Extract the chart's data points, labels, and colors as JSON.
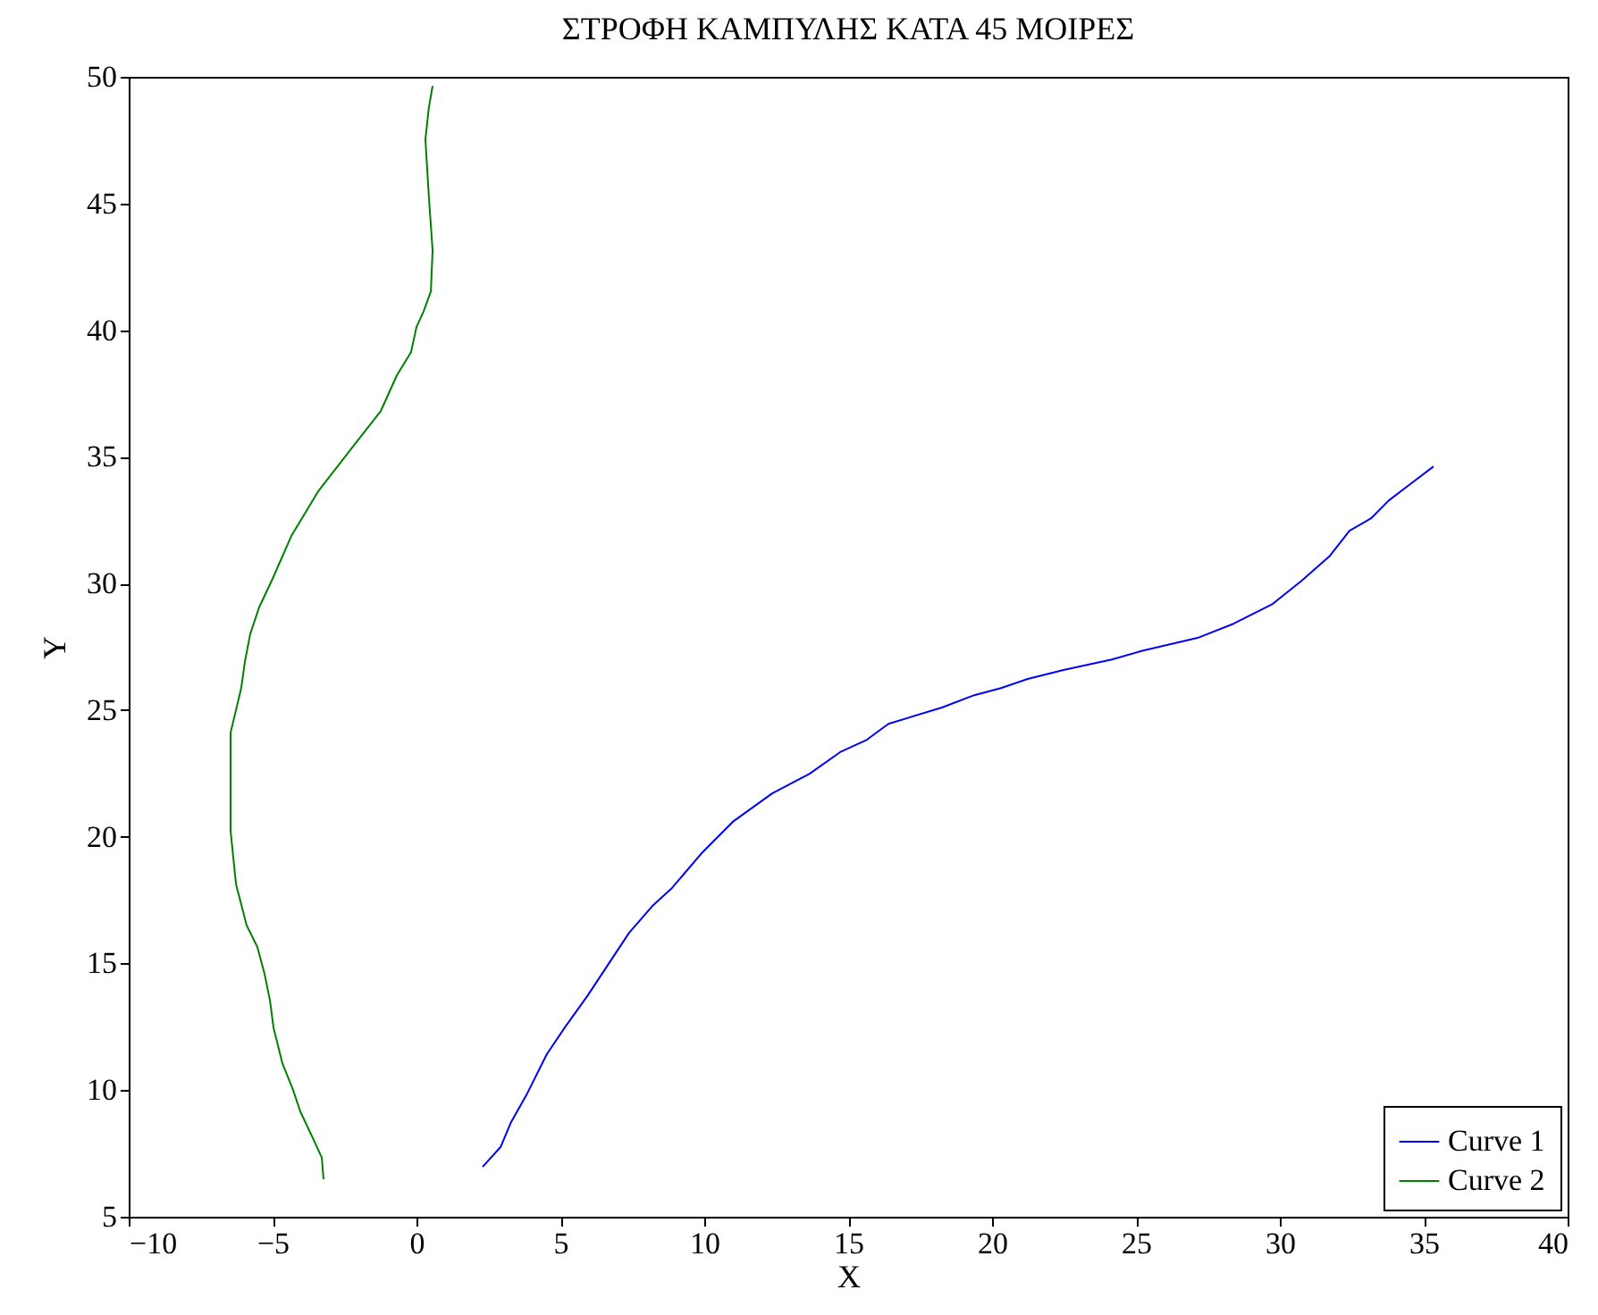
{
  "chart_data": {
    "type": "line",
    "title": "ΣΤΡΟΦΗ ΚΑΜΠΥΛΗΣ ΚΑΤΑ 45 ΜΟΙΡΕΣ",
    "xlabel": "X",
    "ylabel": "Y",
    "xlim": [
      -10,
      40
    ],
    "ylim": [
      5,
      50
    ],
    "xticks": [
      -10,
      -5,
      0,
      5,
      10,
      15,
      20,
      25,
      30,
      35,
      40
    ],
    "yticks": [
      5,
      10,
      15,
      20,
      25,
      30,
      35,
      40,
      45,
      50
    ],
    "legend": "bottom right",
    "grid": false,
    "series": [
      {
        "name": "Curve 1",
        "color": "#0000ff",
        "x": [
          2.3,
          2.92,
          3.29,
          3.85,
          4.53,
          5.16,
          5.96,
          6.65,
          7.39,
          8.2,
          8.88,
          9.94,
          10.99,
          12.36,
          13.66,
          14.72,
          15.65,
          16.4,
          18.26,
          19.38,
          20.31,
          21.24,
          22.48,
          24.16,
          25.28,
          27.14,
          28.39,
          29.75,
          30.75,
          31.74,
          32.42,
          33.17,
          33.79,
          34.6,
          35.34
        ],
        "values": [
          6.97,
          7.75,
          8.74,
          9.87,
          11.42,
          12.48,
          13.75,
          14.94,
          16.21,
          17.27,
          17.98,
          19.39,
          20.59,
          21.71,
          22.49,
          23.34,
          23.83,
          24.46,
          25.1,
          25.59,
          25.87,
          26.23,
          26.58,
          27.0,
          27.36,
          27.85,
          28.41,
          29.19,
          30.1,
          31.09,
          32.08,
          32.57,
          33.28,
          33.98,
          34.62
        ]
      },
      {
        "name": "Curve 2",
        "color": "#008000",
        "x": [
          -3.23,
          -3.29,
          -3.6,
          -4.04,
          -4.29,
          -4.66,
          -4.97,
          -5.09,
          -5.28,
          -5.53,
          -5.9,
          -6.27,
          -6.46,
          -6.46,
          -6.46,
          -6.09,
          -5.96,
          -5.78,
          -5.47,
          -5.03,
          -4.35,
          -3.42,
          -2.36,
          -1.24,
          -0.68,
          -0.19,
          0.0,
          0.25,
          0.5,
          0.56,
          0.43,
          0.31,
          0.43,
          0.56
        ],
        "values": [
          6.48,
          7.33,
          8.1,
          9.16,
          10.01,
          11.06,
          12.48,
          13.53,
          14.59,
          15.65,
          16.5,
          18.12,
          20.23,
          22.0,
          24.11,
          25.87,
          26.93,
          27.99,
          29.05,
          30.11,
          31.87,
          33.63,
          35.18,
          36.81,
          38.22,
          39.13,
          40.12,
          40.75,
          41.53,
          43.15,
          45.27,
          47.53,
          48.79,
          49.64
        ]
      }
    ]
  }
}
